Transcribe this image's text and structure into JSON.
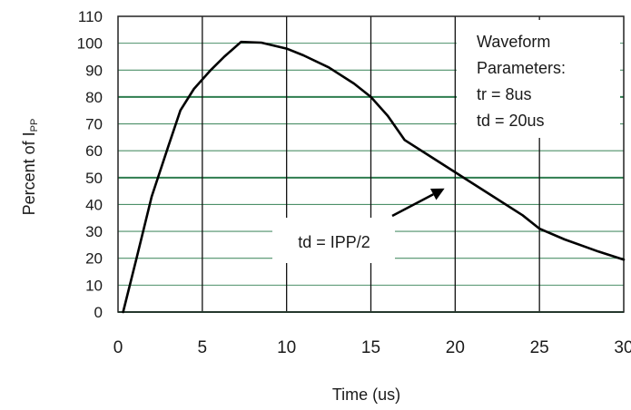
{
  "chart_data": {
    "type": "line",
    "title": "",
    "xlabel": "Time (us)",
    "ylabel": "Percent of I",
    "ylabel_subscript": "PP",
    "xlim": [
      0,
      30
    ],
    "ylim": [
      0,
      110
    ],
    "x_ticks": [
      0,
      5,
      10,
      15,
      20,
      25,
      30
    ],
    "y_ticks": [
      0,
      10,
      20,
      30,
      40,
      50,
      60,
      70,
      80,
      90,
      100,
      110
    ],
    "grid": true,
    "grid_colors": {
      "horizontal": "#2e7d4f",
      "vertical": "#111111"
    },
    "highlight_gridlines_y": [
      50,
      80
    ],
    "series": [
      {
        "color": "#000000",
        "points": [
          [
            0.3,
            0
          ],
          [
            1.1,
            20
          ],
          [
            2.0,
            43
          ],
          [
            3.0,
            62
          ],
          [
            3.7,
            75
          ],
          [
            4.5,
            83
          ],
          [
            5.5,
            90
          ],
          [
            6.3,
            95
          ],
          [
            7.3,
            100.5
          ],
          [
            8.5,
            100.2
          ],
          [
            10.0,
            98
          ],
          [
            11.0,
            95.5
          ],
          [
            12.5,
            91
          ],
          [
            14.0,
            85
          ],
          [
            15.0,
            80
          ],
          [
            16.0,
            73
          ],
          [
            17.0,
            64
          ],
          [
            18.5,
            58
          ],
          [
            20.0,
            52
          ],
          [
            22.0,
            44
          ],
          [
            24.0,
            36
          ],
          [
            25.0,
            31
          ],
          [
            26.5,
            27
          ],
          [
            28.5,
            22.5
          ],
          [
            30.0,
            19.5
          ]
        ]
      }
    ],
    "annotations": {
      "parameters_box": {
        "lines": [
          "Waveform",
          "Parameters:",
          "tr = 8us",
          "td = 20us"
        ]
      },
      "arrow_label": {
        "text": "td = IPP/2",
        "points_to": [
          19.8,
          48
        ]
      }
    }
  }
}
